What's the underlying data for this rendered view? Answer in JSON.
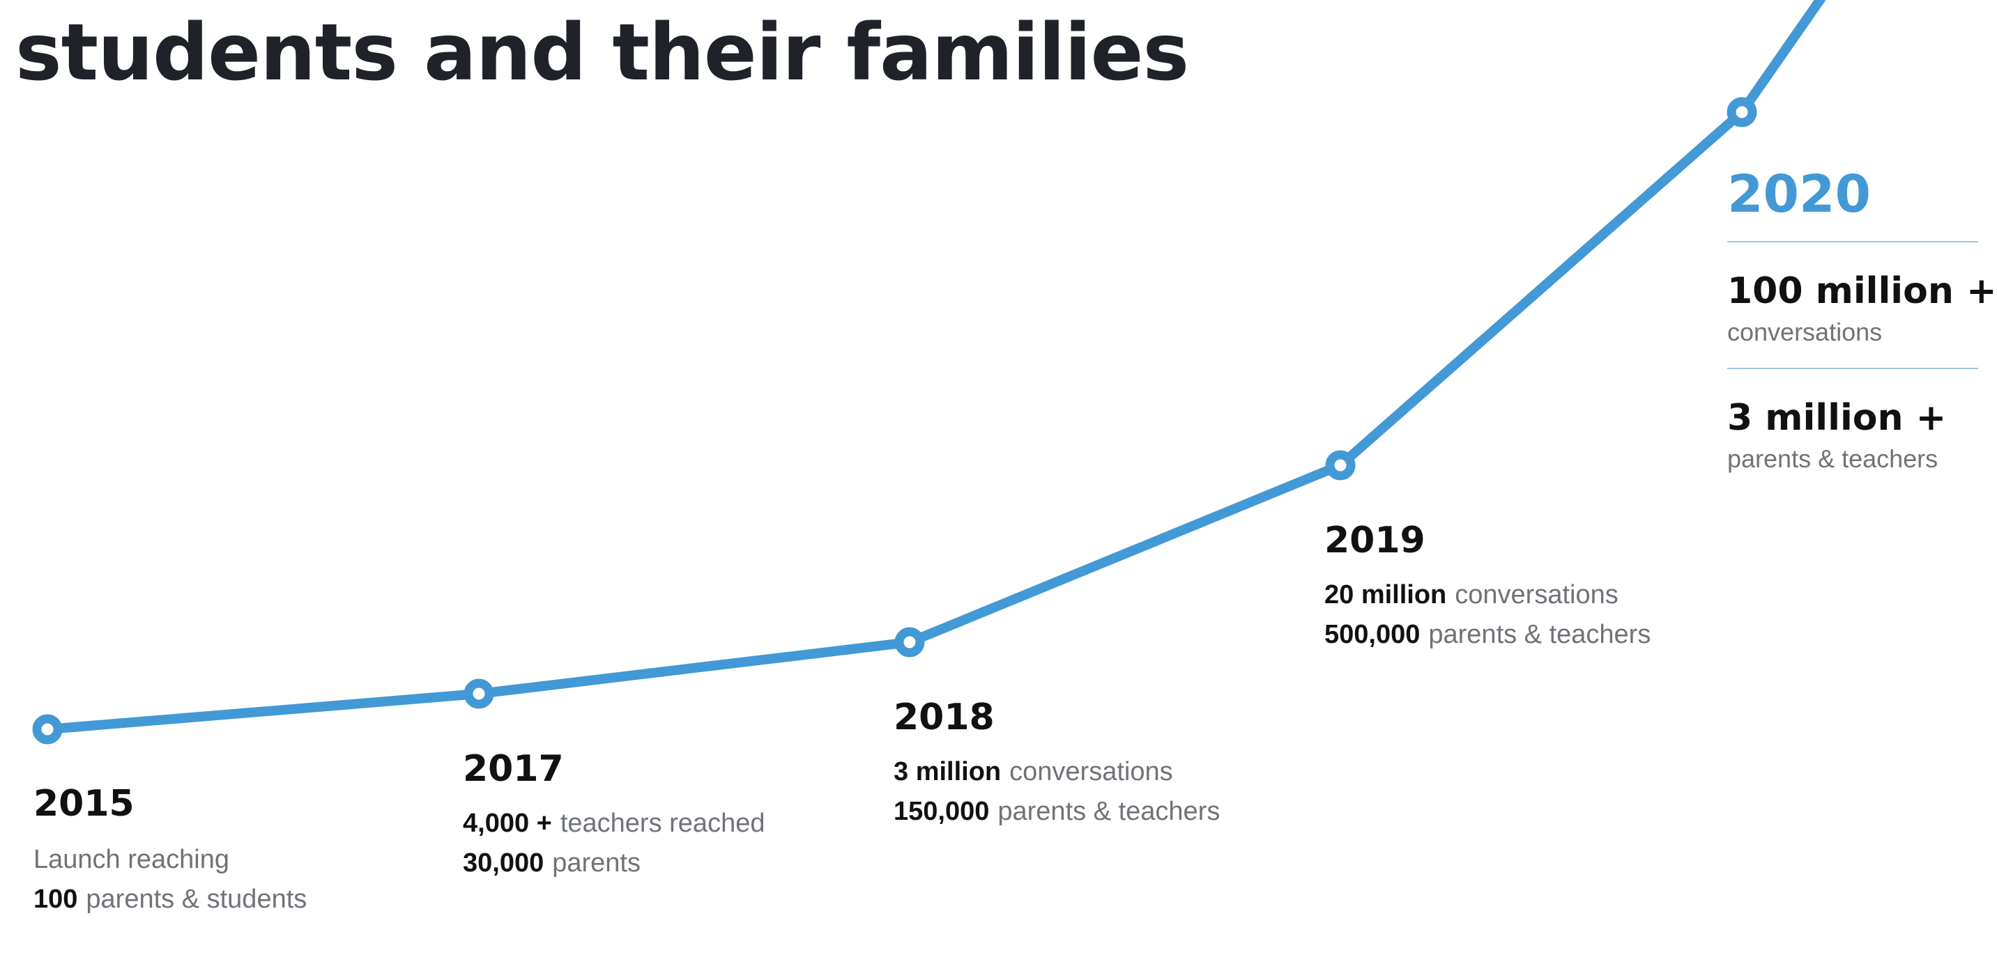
{
  "headline": "students and their families",
  "colors": {
    "line": "#4299d5",
    "dark": "#111111",
    "muted": "#6f7378"
  },
  "milestones": [
    {
      "year": "2015",
      "line1_text": "Launch reaching",
      "line2_strong": "100",
      "line2_text": "parents & students"
    },
    {
      "year": "2017",
      "line1_strong": "4,000 +",
      "line1_text": "teachers reached",
      "line2_strong": "30,000",
      "line2_text": "parents"
    },
    {
      "year": "2018",
      "line1_strong": "3 million",
      "line1_text": "conversations",
      "line2_strong": "150,000",
      "line2_text": "parents & teachers"
    },
    {
      "year": "2019",
      "line1_strong": "20 million",
      "line1_text": "conversations",
      "line2_strong": "500,000",
      "line2_text": "parents & teachers"
    },
    {
      "year": "2020",
      "stat1_value": "100 million +",
      "stat1_label": "conversations",
      "stat2_value": "3 million +",
      "stat2_label": "parents & teachers"
    }
  ],
  "chart_data": {
    "type": "line",
    "categories": [
      "2015",
      "2017",
      "2018",
      "2019",
      "2020"
    ],
    "values": [
      100,
      30000,
      150000,
      500000,
      3000000
    ]
  }
}
